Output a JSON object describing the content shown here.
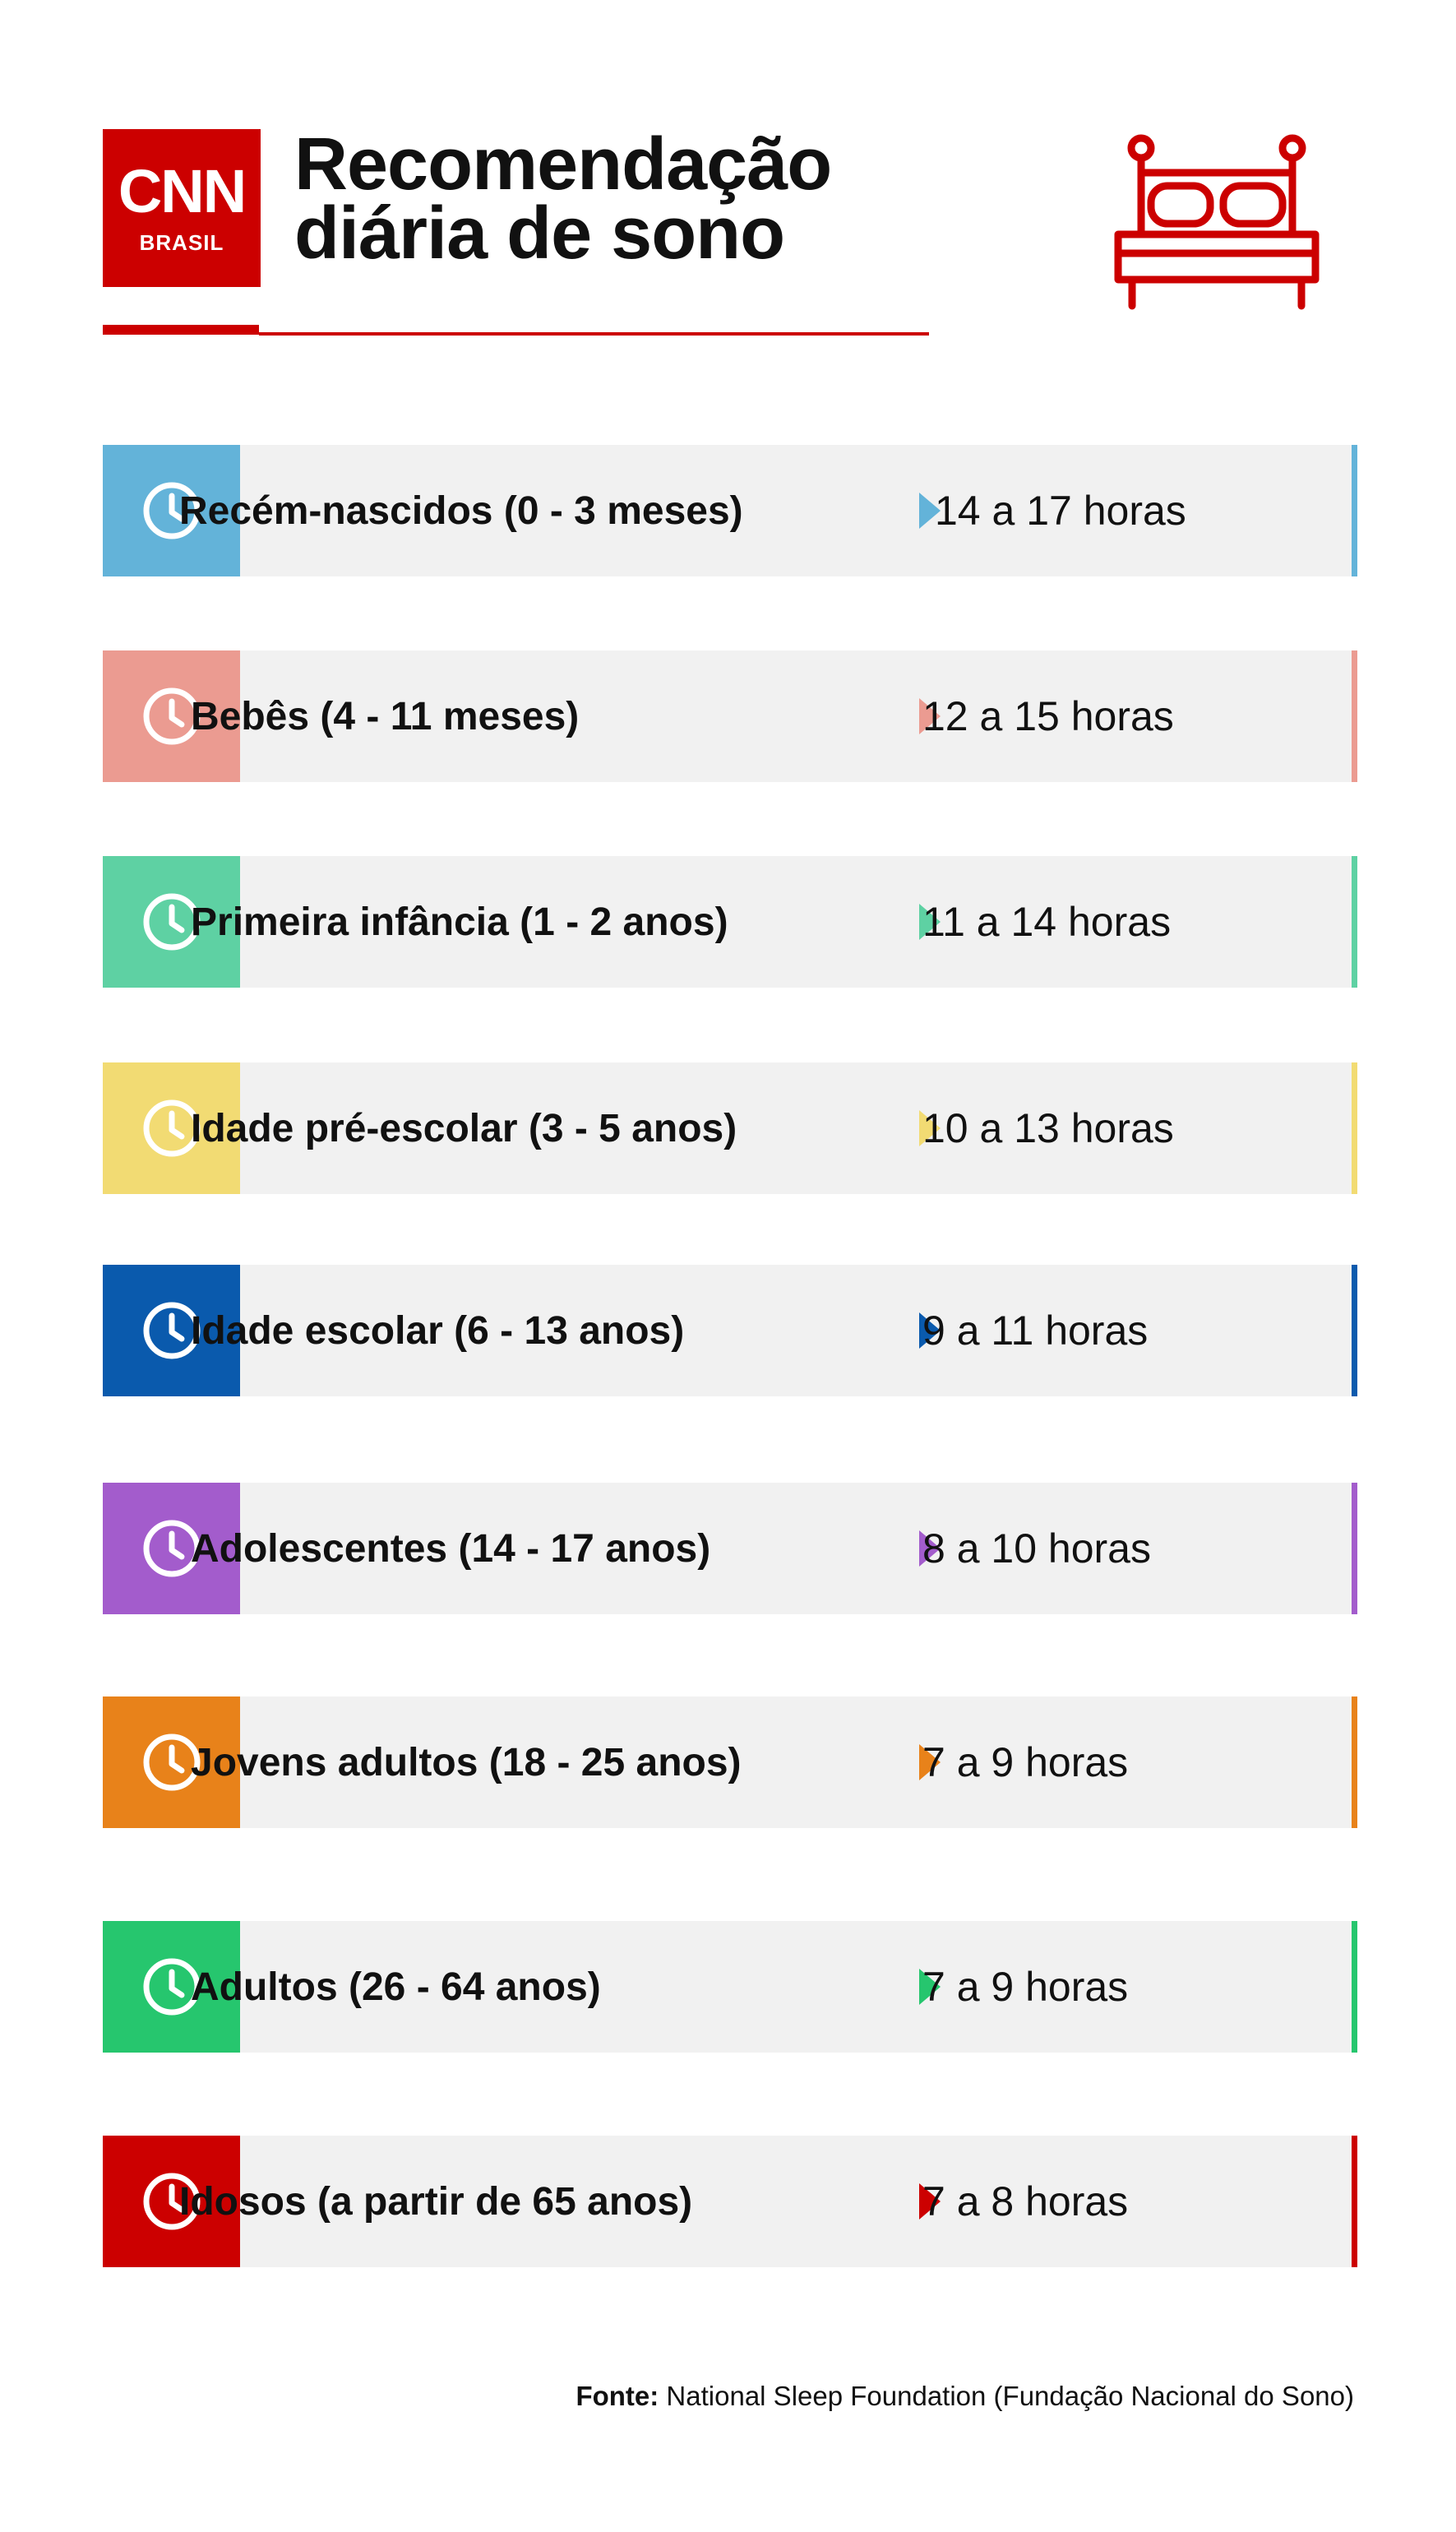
{
  "header": {
    "logo_text": "CNN",
    "logo_sub": "BRASIL",
    "title_line1": "Recomendação",
    "title_line2": "diária de sono"
  },
  "rows": [
    {
      "label": "Recém-nascidos (0 - 3 meses)",
      "hours": "14 a 17 horas",
      "color": "#63b3d9"
    },
    {
      "label": "Bebês (4 - 11 meses)",
      "hours": "12 a 15 horas",
      "color": "#eb9b91"
    },
    {
      "label": "Primeira infância (1 - 2 anos)",
      "hours": "11 a 14 horas",
      "color": "#5ed1a3"
    },
    {
      "label": "Idade pré-escolar (3 - 5 anos)",
      "hours": "10 a 13 horas",
      "color": "#f2db73"
    },
    {
      "label": "Idade escolar (6 - 13 anos)",
      "hours": "9 a 11 horas",
      "color": "#0a5aad"
    },
    {
      "label": "Adolescentes (14 - 17 anos)",
      "hours": "8 a 10 horas",
      "color": "#a35ccc"
    },
    {
      "label": "Jovens adultos (18 - 25 anos)",
      "hours": "7 a 9 horas",
      "color": "#e8821a"
    },
    {
      "label": "Adultos (26 - 64 anos)",
      "hours": "7 a 9 horas",
      "color": "#26c66e"
    },
    {
      "label": "Idosos (a partir de 65 anos)",
      "hours": "7 a 8 horas",
      "color": "#cc0000"
    }
  ],
  "footer": {
    "source_label": "Fonte:",
    "source_text": " National Sleep Foundation (Fundação Nacional do Sono)"
  },
  "icons": {
    "row_icon": "clock-icon",
    "header_icon": "bed-icon"
  }
}
